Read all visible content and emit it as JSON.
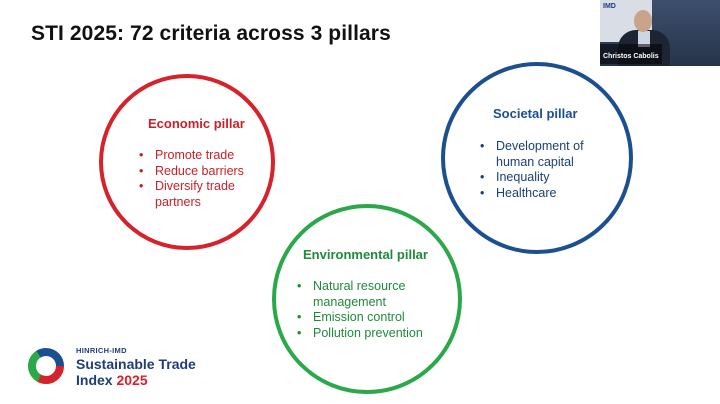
{
  "slide": {
    "title": "STI 2025: 72 criteria across 3 pillars",
    "pillars": [
      {
        "id": "economic",
        "title": "Economic pillar",
        "color": "#d6222a",
        "bullets": [
          "Promote trade",
          "Reduce barriers",
          "Diversify trade partners"
        ]
      },
      {
        "id": "societal",
        "title": "Societal pillar",
        "color": "#1c4f8f",
        "bullets": [
          "Development of human capital",
          "Inequality",
          "Healthcare"
        ]
      },
      {
        "id": "environmental",
        "title": "Environmental pillar",
        "color": "#2aa84a",
        "bullets": [
          "Natural resource management",
          "Emission control",
          "Pollution prevention"
        ]
      }
    ],
    "bullet_char": "•"
  },
  "branding": {
    "small_label": "HINRICH-IMD",
    "line1": "Sustainable Trade",
    "line2": "Index",
    "year": "2025",
    "logo_colors": [
      "#d6222a",
      "#2aa84a",
      "#1c4f8f"
    ]
  },
  "video": {
    "presenter_name": "Christos Cabolis",
    "brand_text": "IMD"
  }
}
